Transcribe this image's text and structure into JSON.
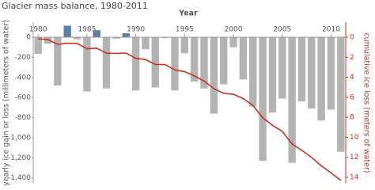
{
  "chart_data": {
    "type": "bar-line",
    "title": "Glacier mass balance, 1980-2011",
    "xlabel": "Year",
    "ylabel": "yearly ice gain or loss (millimeters of water)",
    "y2label": "cumulative ice loss (meters of water)",
    "x": [
      1980,
      1981,
      1982,
      1983,
      1984,
      1985,
      1986,
      1987,
      1988,
      1989,
      1990,
      1991,
      1992,
      1993,
      1994,
      1995,
      1996,
      1997,
      1998,
      1999,
      2000,
      2001,
      2002,
      2003,
      2004,
      2005,
      2006,
      2007,
      2008,
      2009,
      2010,
      2011
    ],
    "xlim": [
      1979.5,
      2011.5
    ],
    "xticks": [
      1980,
      1985,
      1990,
      1995,
      2000,
      2005,
      2010
    ],
    "ylim": [
      -1450,
      150
    ],
    "yticks": [
      0,
      -200,
      -400,
      -600,
      -800,
      {
        "value": -1000,
        "label": "-1,000"
      },
      {
        "value": -1200,
        "label": "-1,200"
      },
      {
        "value": -1400,
        "label": "-1,400"
      }
    ],
    "y2lim": [
      -1.5,
      14.55
    ],
    "y2_inverted": true,
    "y2ticks": [
      0,
      2,
      4,
      6,
      8,
      10,
      12,
      14
    ],
    "positive_color": "#5b80a8",
    "negative_color": "#b3b3b3",
    "series": [
      {
        "name": "yearly ice gain or loss",
        "type": "bar",
        "values": [
          -165,
          -65,
          -480,
          115,
          -20,
          -540,
          70,
          -510,
          -15,
          40,
          -530,
          -120,
          -500,
          -10,
          -530,
          -160,
          -440,
          -510,
          -760,
          -470,
          -100,
          -420,
          -690,
          -1230,
          -750,
          -610,
          -1250,
          -640,
          -710,
          -830,
          -720,
          -1140
        ]
      },
      {
        "name": "cumulative ice loss",
        "type": "line",
        "axis": "y2",
        "color": "#c8321e",
        "values": [
          0.17,
          0.23,
          0.71,
          0.6,
          0.62,
          1.16,
          1.09,
          1.6,
          1.62,
          1.58,
          2.11,
          2.23,
          2.73,
          2.74,
          3.27,
          3.43,
          3.87,
          4.38,
          5.14,
          5.61,
          5.71,
          6.13,
          6.82,
          8.05,
          8.8,
          9.41,
          10.66,
          11.3,
          12.01,
          12.84,
          13.56,
          14.3
        ]
      }
    ]
  }
}
